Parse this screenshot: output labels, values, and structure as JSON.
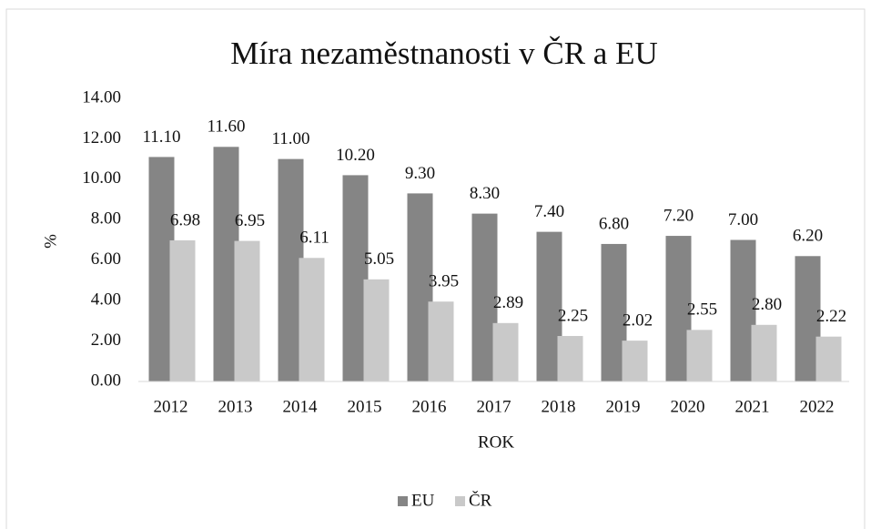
{
  "chart_data": {
    "type": "bar",
    "title": "Míra nezaměstnanosti v ČR a EU",
    "x_label": "ROK",
    "y_label": "%",
    "categories": [
      "2012",
      "2013",
      "2014",
      "2015",
      "2016",
      "2017",
      "2018",
      "2019",
      "2020",
      "2021",
      "2022"
    ],
    "series": [
      {
        "name": "EU",
        "color": "#858585",
        "values": [
          11.1,
          11.6,
          11.0,
          10.2,
          9.3,
          8.3,
          7.4,
          6.8,
          7.2,
          7.0,
          6.2
        ],
        "value_labels": [
          "11.10",
          "11.60",
          "11.00",
          "10.20",
          "9.30",
          "8.30",
          "7.40",
          "6.80",
          "7.20",
          "7.00",
          "6.20"
        ]
      },
      {
        "name": "ČR",
        "color": "#c9c9c9",
        "values": [
          6.98,
          6.95,
          6.11,
          5.05,
          3.95,
          2.89,
          2.25,
          2.02,
          2.55,
          2.8,
          2.22
        ],
        "value_labels": [
          "6.98",
          "6.95",
          "6.11",
          "5.05",
          "3.95",
          "2.89",
          "2.25",
          "2.02",
          "2.55",
          "2.80",
          "2.22"
        ]
      }
    ],
    "ylim": [
      0,
      14
    ],
    "yticks": [
      {
        "value": 0,
        "label": "0.00"
      },
      {
        "value": 2,
        "label": "2.00"
      },
      {
        "value": 4,
        "label": "4.00"
      },
      {
        "value": 6,
        "label": "6.00"
      },
      {
        "value": 8,
        "label": "8.00"
      },
      {
        "value": 10,
        "label": "10.00"
      },
      {
        "value": 12,
        "label": "12.00"
      },
      {
        "value": 14,
        "label": "14.00"
      }
    ],
    "grid": false,
    "legend": "bottom"
  }
}
